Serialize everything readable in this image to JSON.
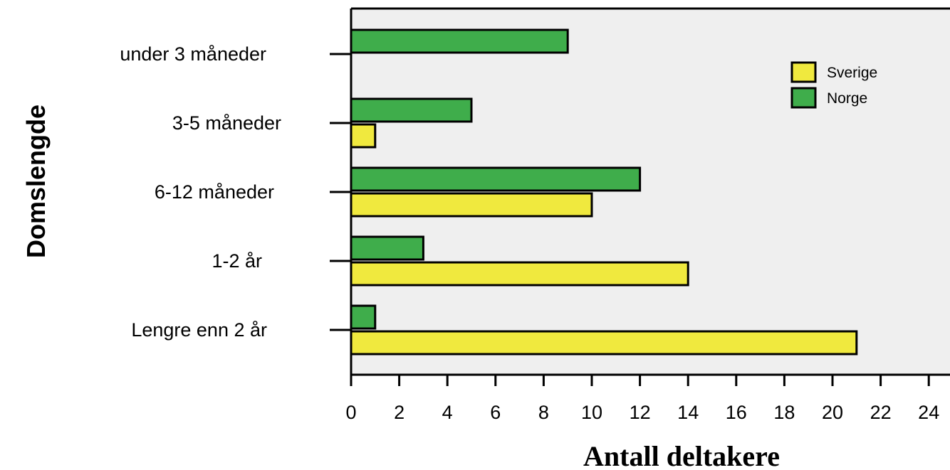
{
  "chart_data": {
    "type": "bar",
    "orientation": "horizontal",
    "categories": [
      "under 3 måneder",
      "3-5 måneder",
      "6-12 måneder",
      "1-2 år",
      "Lengre enn 2 år"
    ],
    "series": [
      {
        "name": "Sverige",
        "color": "#f0e93e",
        "values": [
          0,
          1,
          10,
          14,
          21
        ]
      },
      {
        "name": "Norge",
        "color": "#3fad4b",
        "values": [
          9,
          5,
          12,
          3,
          1
        ]
      }
    ],
    "xlabel": "Antall deltakere",
    "ylabel": "Domslengde",
    "xlim": [
      0,
      25
    ],
    "xticks": [
      "0",
      "2",
      "4",
      "6",
      "8",
      "10",
      "12",
      "14",
      "16",
      "18",
      "20",
      "22",
      "24"
    ],
    "legend_position": "top-right",
    "background": "#efefef"
  }
}
